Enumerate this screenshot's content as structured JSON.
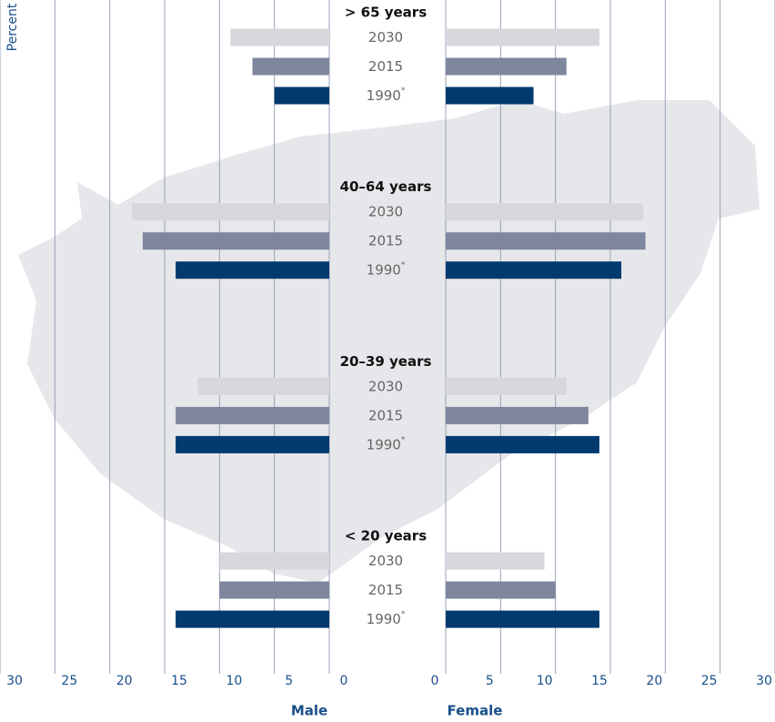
{
  "chart_data": {
    "type": "butterfly",
    "ylabel": "Percent",
    "left_label": "Male",
    "right_label": "Female",
    "categories": [
      "> 65 years",
      "40–64 years",
      "20–39 years",
      "< 20 years"
    ],
    "xlim": [
      0,
      30
    ],
    "xticks": [
      0,
      5,
      10,
      15,
      20,
      25,
      30
    ],
    "grid": true,
    "series": [
      {
        "name": "2030",
        "color": "#d6d8dd",
        "male": [
          9,
          18,
          12,
          10
        ],
        "female": [
          14,
          18,
          11,
          9
        ]
      },
      {
        "name": "2015",
        "color": "#7f879f",
        "male": [
          7,
          17,
          14,
          10
        ],
        "female": [
          11,
          18.2,
          13,
          10
        ]
      },
      {
        "name": "1990",
        "note": "*",
        "color": "#003a6e",
        "male": [
          5,
          14,
          14,
          14
        ],
        "female": [
          8,
          16,
          14,
          14
        ]
      }
    ]
  }
}
